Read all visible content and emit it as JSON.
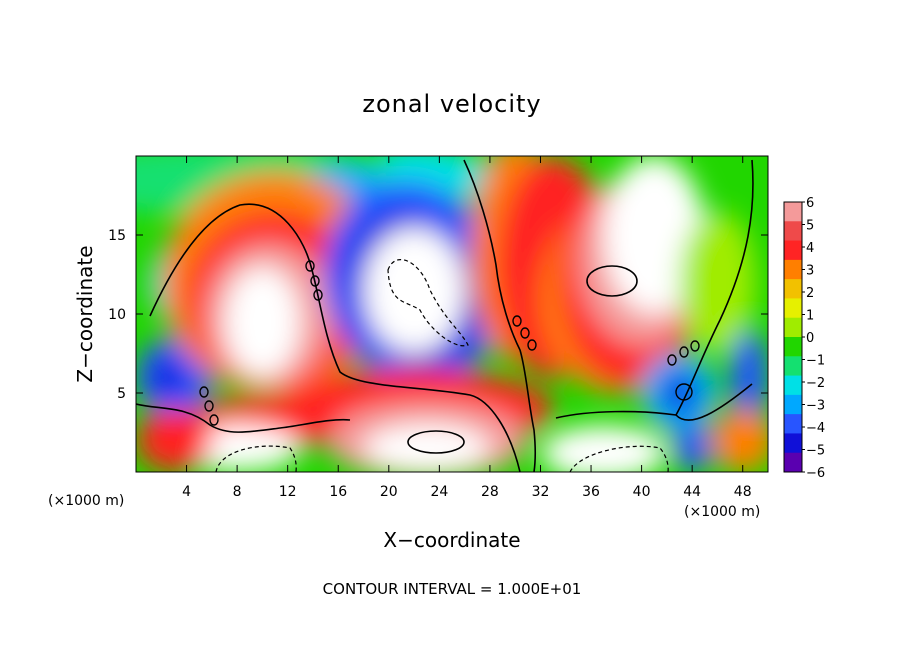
{
  "chart_data": {
    "type": "heatmap",
    "title": "zonal velocity",
    "xlabel": "X−coordinate",
    "ylabel": "Z−coordinate",
    "x_unit_label": "(×1000 m)",
    "footer": "CONTOUR INTERVAL = 1.000E+01",
    "xlim": [
      0,
      50
    ],
    "ylim": [
      0,
      20
    ],
    "x_ticks": [
      "4",
      "8",
      "12",
      "16",
      "20",
      "24",
      "28",
      "32",
      "36",
      "40",
      "44",
      "48"
    ],
    "x_tick_values": [
      4,
      8,
      12,
      16,
      20,
      24,
      28,
      32,
      36,
      40,
      44,
      48
    ],
    "y_ticks": [
      "5",
      "10",
      "15"
    ],
    "y_tick_values": [
      5,
      10,
      15
    ],
    "colorbar": {
      "labels": [
        "6",
        "5",
        "4",
        "3",
        "2",
        "1",
        "0",
        "−1",
        "−2",
        "−3",
        "−4",
        "−5",
        "−6"
      ],
      "values": [
        6,
        5,
        4,
        3,
        2,
        1,
        0,
        -1,
        -2,
        -3,
        -4,
        -5,
        -6
      ],
      "colors": [
        "#f49a9a",
        "#ef4a4a",
        "#ff2424",
        "#ff7f00",
        "#f2c100",
        "#e6f000",
        "#a0ec00",
        "#21d600",
        "#14e070",
        "#00e0e6",
        "#00a8ff",
        "#2855ff",
        "#1010d8",
        "#5a00b0"
      ]
    },
    "features": [
      {
        "kind": "max",
        "x": 10,
        "z": 9.5,
        "value": 7
      },
      {
        "kind": "max",
        "x": 22,
        "z": 11,
        "value": 7
      },
      {
        "kind": "max",
        "x": 40,
        "z": 13,
        "value": 7
      },
      {
        "kind": "max",
        "x": 37,
        "z": 1.0,
        "value": 7
      },
      {
        "kind": "max",
        "x": 23,
        "z": 1.5,
        "value": 7
      },
      {
        "kind": "min",
        "x": 26,
        "z": 11,
        "value": -6
      },
      {
        "kind": "min",
        "x": 43,
        "z": 5,
        "value": -6
      },
      {
        "kind": "min",
        "x": 2.5,
        "z": 6,
        "value": -6
      }
    ],
    "grid": false,
    "legend": "right"
  }
}
